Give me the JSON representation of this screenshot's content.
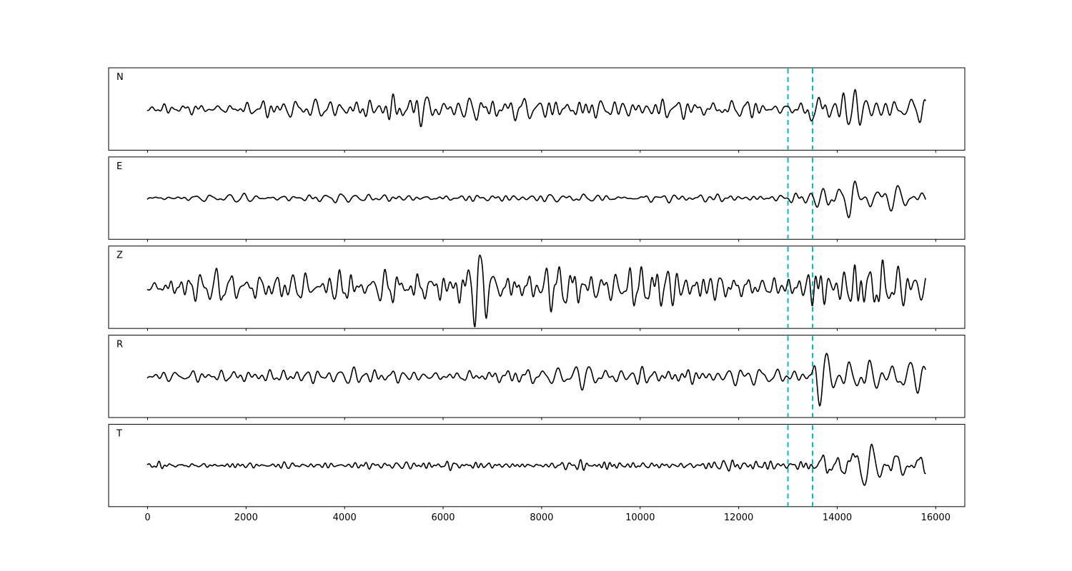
{
  "figure": {
    "background": "#ffffff",
    "trace_color": "#000000",
    "border_color": "#000000",
    "pick_line_color": "#00bfbf"
  },
  "chart_data": {
    "type": "line",
    "title": "",
    "xlabel": "",
    "ylabel": "",
    "grid": false,
    "legend": "none",
    "xlim": [
      -790,
      16590
    ],
    "x_ticks": [
      0,
      2000,
      4000,
      6000,
      8000,
      10000,
      12000,
      14000,
      16000
    ],
    "n_samples": 15800,
    "sample_step": 12,
    "pick_lines": [
      {
        "x": 13000,
        "style": "dashed"
      },
      {
        "x": 13500,
        "style": "dashed"
      }
    ],
    "panels": [
      {
        "label": "N",
        "seed": 101,
        "noise_periods": [
          110,
          400
        ],
        "signal_periods": [
          190,
          430
        ],
        "noise_env": [
          [
            0,
            6
          ],
          [
            1200,
            8
          ],
          [
            1800,
            17
          ],
          [
            2600,
            12
          ],
          [
            4000,
            15
          ],
          [
            5200,
            16
          ],
          [
            6000,
            22
          ],
          [
            6900,
            17
          ],
          [
            8000,
            16
          ],
          [
            9000,
            14
          ],
          [
            10500,
            13
          ],
          [
            12000,
            15
          ],
          [
            12800,
            11
          ],
          [
            13400,
            12
          ],
          [
            14000,
            10
          ],
          [
            15800,
            9
          ]
        ],
        "signal_env": [
          [
            0,
            0
          ],
          [
            13380,
            0
          ],
          [
            13550,
            40
          ],
          [
            13900,
            30
          ],
          [
            14150,
            52
          ],
          [
            14500,
            38
          ],
          [
            15000,
            29
          ],
          [
            15400,
            27
          ],
          [
            15800,
            20
          ]
        ]
      },
      {
        "label": "E",
        "seed": 202,
        "noise_periods": [
          110,
          400
        ],
        "signal_periods": [
          210,
          480
        ],
        "noise_env": [
          [
            0,
            5
          ],
          [
            3000,
            6
          ],
          [
            6000,
            7
          ],
          [
            9000,
            6
          ],
          [
            12000,
            7
          ],
          [
            13200,
            8
          ],
          [
            15800,
            6
          ]
        ],
        "signal_env": [
          [
            0,
            0
          ],
          [
            13420,
            0
          ],
          [
            13600,
            16
          ],
          [
            13900,
            20
          ],
          [
            14100,
            24
          ],
          [
            14280,
            50
          ],
          [
            14600,
            28
          ],
          [
            15000,
            22
          ],
          [
            15400,
            20
          ],
          [
            15800,
            14
          ]
        ]
      },
      {
        "label": "Z",
        "seed": 303,
        "noise_periods": [
          100,
          330
        ],
        "signal_periods": [
          200,
          450
        ],
        "noise_env": [
          [
            0,
            8
          ],
          [
            700,
            14
          ],
          [
            1150,
            30
          ],
          [
            1500,
            32
          ],
          [
            1900,
            18
          ],
          [
            2600,
            22
          ],
          [
            3500,
            19
          ],
          [
            4400,
            14
          ],
          [
            5300,
            24
          ],
          [
            6000,
            30
          ],
          [
            6600,
            48
          ],
          [
            7000,
            26
          ],
          [
            8200,
            27
          ],
          [
            9500,
            24
          ],
          [
            10500,
            27
          ],
          [
            11500,
            24
          ],
          [
            12500,
            23
          ],
          [
            13200,
            20
          ],
          [
            13800,
            26
          ],
          [
            14500,
            30
          ],
          [
            14900,
            40
          ],
          [
            15300,
            28
          ],
          [
            15800,
            33
          ]
        ],
        "signal_env": [
          [
            0,
            0
          ],
          [
            15800,
            0
          ]
        ]
      },
      {
        "label": "R",
        "seed": 404,
        "noise_periods": [
          110,
          400
        ],
        "signal_periods": [
          190,
          430
        ],
        "noise_env": [
          [
            0,
            6
          ],
          [
            1200,
            8
          ],
          [
            1800,
            16
          ],
          [
            2600,
            12
          ],
          [
            4000,
            14
          ],
          [
            5200,
            16
          ],
          [
            6000,
            21
          ],
          [
            6900,
            17
          ],
          [
            8000,
            16
          ],
          [
            9000,
            14
          ],
          [
            10500,
            14
          ],
          [
            12000,
            15
          ],
          [
            12800,
            11
          ],
          [
            13400,
            12
          ],
          [
            14000,
            10
          ],
          [
            15800,
            9
          ]
        ],
        "signal_env": [
          [
            0,
            0
          ],
          [
            13400,
            0
          ],
          [
            13560,
            46
          ],
          [
            13900,
            32
          ],
          [
            14300,
            38
          ],
          [
            14800,
            34
          ],
          [
            15300,
            29
          ],
          [
            15800,
            24
          ]
        ]
      },
      {
        "label": "T",
        "seed": 505,
        "noise_periods": [
          90,
          240
        ],
        "signal_periods": [
          210,
          480
        ],
        "noise_env": [
          [
            0,
            4.5
          ],
          [
            4000,
            5
          ],
          [
            8000,
            5.5
          ],
          [
            11000,
            6
          ],
          [
            12800,
            7
          ],
          [
            13400,
            9
          ],
          [
            15800,
            6
          ]
        ],
        "signal_env": [
          [
            0,
            0
          ],
          [
            13450,
            0
          ],
          [
            13700,
            15
          ],
          [
            14000,
            17
          ],
          [
            14150,
            24
          ],
          [
            14320,
            50
          ],
          [
            14650,
            26
          ],
          [
            15100,
            21
          ],
          [
            15500,
            22
          ],
          [
            15800,
            17
          ]
        ]
      }
    ]
  }
}
